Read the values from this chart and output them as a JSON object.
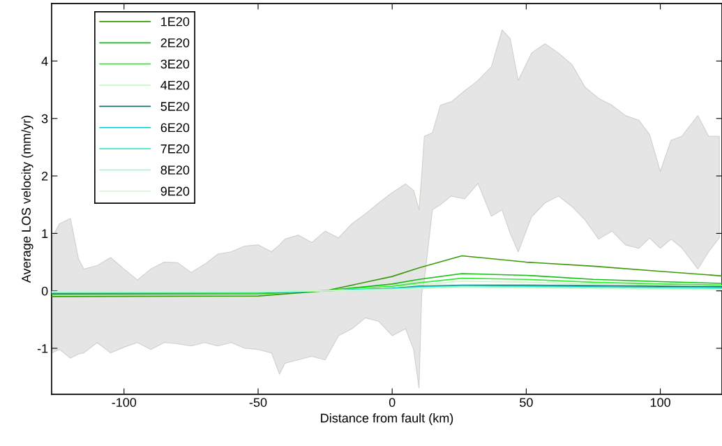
{
  "chart_data": {
    "type": "line",
    "xlabel": "Distance from fault (km)",
    "ylabel": "Average LOS velocity (mm/yr)",
    "xlim": [
      -127,
      123
    ],
    "ylim": [
      -1.8,
      5.0
    ],
    "xticks": [
      -100,
      -50,
      0,
      50,
      100
    ],
    "yticks": [
      -1,
      0,
      1,
      2,
      3,
      4
    ],
    "grid": false,
    "legend": "top left",
    "series": [
      {
        "type": "line",
        "color": "#e5e5e5",
        "values": [
          null,
          null,
          null,
          null,
          null,
          null,
          null,
          null,
          null,
          null,
          null,
          null,
          null,
          null,
          null,
          null,
          null,
          null,
          null,
          null,
          null,
          null,
          null,
          null,
          null,
          null,
          null,
          null,
          null,
          null,
          null,
          null,
          null,
          null,
          null,
          null,
          null,
          null,
          null,
          null,
          null,
          null,
          null,
          null,
          null,
          null,
          null,
          null,
          null,
          null,
          null,
          null,
          null,
          null,
          null,
          null,
          null,
          null,
          null
        ],
        "x": [
          -127,
          -124,
          -120,
          -117,
          -115,
          -110,
          -105,
          -100,
          -95,
          -90,
          -85,
          -80,
          -75,
          -70,
          -65,
          -60,
          -55,
          -50,
          -45,
          -42,
          -40,
          -35,
          -30,
          -25,
          -20,
          -15,
          -10,
          -5,
          0,
          5,
          8,
          10,
          11,
          12,
          15,
          18,
          22,
          27,
          32,
          37,
          41,
          44,
          47,
          52,
          57,
          62,
          67,
          72,
          77,
          82,
          87,
          92,
          96,
          100,
          104,
          108,
          114,
          118,
          122
        ],
        "upper": [
          0.92,
          1.17,
          1.26,
          0.56,
          0.38,
          0.44,
          0.58,
          0.38,
          0.19,
          0.38,
          0.5,
          0.49,
          0.32,
          0.46,
          0.64,
          0.68,
          0.78,
          0.8,
          0.68,
          0.8,
          0.9,
          0.97,
          0.84,
          1.04,
          0.92,
          1.17,
          1.34,
          1.53,
          1.71,
          1.86,
          1.75,
          1.41,
          2.0,
          2.69,
          2.75,
          3.23,
          3.29,
          3.48,
          3.66,
          3.9,
          4.54,
          4.39,
          3.66,
          4.14,
          4.3,
          4.14,
          3.94,
          3.54,
          3.35,
          3.23,
          3.05,
          2.97,
          2.72,
          2.08,
          2.62,
          2.69,
          3.05,
          2.69,
          2.69
        ],
        "lower": [
          -1.08,
          -1.02,
          -1.17,
          -1.1,
          -1.08,
          -0.9,
          -1.08,
          -0.98,
          -0.9,
          -1.02,
          -0.9,
          -0.92,
          -0.96,
          -0.9,
          -0.96,
          -0.9,
          -1.0,
          -1.02,
          -1.08,
          -1.45,
          -1.26,
          -1.2,
          -1.14,
          -1.2,
          -0.78,
          -0.66,
          -0.47,
          -0.53,
          -0.78,
          -0.66,
          -1.02,
          -1.69,
          -0.05,
          0.19,
          1.41,
          1.5,
          1.65,
          1.6,
          1.87,
          1.3,
          1.41,
          1.0,
          0.68,
          1.29,
          1.53,
          1.65,
          1.47,
          1.23,
          0.9,
          1.04,
          0.8,
          0.74,
          0.92,
          0.74,
          0.9,
          0.75,
          0.38,
          0.68,
          0.92
        ]
      },
      {
        "name": "1E20",
        "color": "#3a9a0a",
        "x": [
          -127,
          -50,
          -25,
          0,
          10,
          26,
          50,
          75,
          100,
          123
        ],
        "values": [
          -0.1,
          -0.09,
          0.0,
          0.25,
          0.4,
          0.61,
          0.5,
          0.43,
          0.34,
          0.26
        ]
      },
      {
        "name": "2E20",
        "color": "#10c010",
        "x": [
          -127,
          -50,
          -25,
          0,
          10,
          26,
          50,
          75,
          100,
          123
        ],
        "values": [
          -0.06,
          -0.05,
          0.0,
          0.12,
          0.2,
          0.3,
          0.27,
          0.2,
          0.16,
          0.13
        ]
      },
      {
        "name": "3E20",
        "color": "#30f030",
        "x": [
          -127,
          -50,
          -25,
          0,
          10,
          26,
          50,
          75,
          100,
          123
        ],
        "values": [
          -0.04,
          -0.04,
          0.0,
          0.08,
          0.14,
          0.22,
          0.2,
          0.15,
          0.12,
          0.1
        ]
      },
      {
        "name": "4E20",
        "color": "#c8f8c8",
        "x": [
          -127,
          -50,
          -25,
          0,
          10,
          26,
          50,
          75,
          100,
          123
        ],
        "values": [
          -0.02,
          -0.02,
          0.0,
          0.06,
          0.1,
          0.17,
          0.15,
          0.12,
          0.1,
          0.08
        ]
      },
      {
        "name": "5E20",
        "color": "#1a6e6a",
        "x": [
          -127,
          -50,
          -25,
          0,
          10,
          26,
          50,
          75,
          100,
          123
        ],
        "values": [
          -0.04,
          -0.03,
          0.0,
          0.04,
          0.08,
          0.1,
          0.1,
          0.09,
          0.08,
          0.07
        ]
      },
      {
        "name": "6E20",
        "color": "#10c8c8",
        "x": [
          -127,
          -50,
          -25,
          0,
          10,
          26,
          50,
          75,
          100,
          123
        ],
        "values": [
          -0.03,
          -0.03,
          0.0,
          0.04,
          0.07,
          0.09,
          0.08,
          0.07,
          0.06,
          0.05
        ]
      },
      {
        "name": "7E20",
        "color": "#30f0d0",
        "x": [
          -127,
          -50,
          -25,
          0,
          10,
          26,
          50,
          75,
          100,
          123
        ],
        "values": [
          -0.03,
          -0.02,
          0.0,
          0.03,
          0.06,
          0.08,
          0.07,
          0.06,
          0.05,
          0.04
        ]
      },
      {
        "name": "8E20",
        "color": "#90f8d8",
        "x": [
          -127,
          -50,
          -25,
          0,
          10,
          26,
          50,
          75,
          100,
          123
        ],
        "values": [
          -0.02,
          -0.02,
          0.0,
          0.03,
          0.05,
          0.07,
          0.06,
          0.05,
          0.04,
          0.03
        ]
      },
      {
        "name": "9E20",
        "color": "#d0f8d0",
        "x": [
          -127,
          -50,
          -25,
          0,
          10,
          26,
          50,
          75,
          100,
          123
        ],
        "values": [
          -0.01,
          -0.01,
          0.0,
          0.02,
          0.04,
          0.06,
          0.05,
          0.04,
          0.03,
          0.02
        ]
      }
    ]
  }
}
